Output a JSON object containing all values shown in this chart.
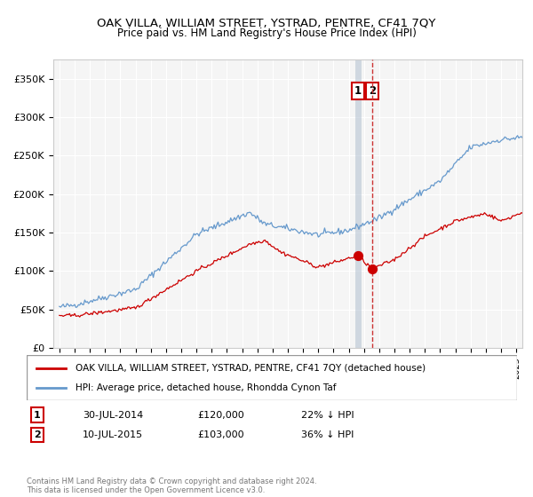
{
  "title": "OAK VILLA, WILLIAM STREET, YSTRAD, PENTRE, CF41 7QY",
  "subtitle": "Price paid vs. HM Land Registry's House Price Index (HPI)",
  "ylabel_ticks": [
    "£0",
    "£50K",
    "£100K",
    "£150K",
    "£200K",
    "£250K",
    "£300K",
    "£350K"
  ],
  "ylabel_values": [
    0,
    50000,
    100000,
    150000,
    200000,
    250000,
    300000,
    350000
  ],
  "ylim": [
    0,
    375000
  ],
  "xlim_start": 1994.6,
  "xlim_end": 2025.4,
  "legend_label_red": "OAK VILLA, WILLIAM STREET, YSTRAD, PENTRE, CF41 7QY (detached house)",
  "legend_label_blue": "HPI: Average price, detached house, Rhondda Cynon Taf",
  "transaction1_date": "30-JUL-2014",
  "transaction1_price": "£120,000",
  "transaction1_pct": "22% ↓ HPI",
  "transaction2_date": "10-JUL-2015",
  "transaction2_price": "£103,000",
  "transaction2_pct": "36% ↓ HPI",
  "footnote": "Contains HM Land Registry data © Crown copyright and database right 2024.\nThis data is licensed under the Open Government Licence v3.0.",
  "vline1_x": 2014.58,
  "vline2_x": 2015.53,
  "red_dot1_x": 2014.58,
  "red_dot1_y": 120000,
  "red_dot2_x": 2015.53,
  "red_dot2_y": 103000,
  "red_color": "#cc0000",
  "blue_color": "#6699cc",
  "vline1_color": "#aabbcc",
  "vline2_color": "#cc3333",
  "bg_color": "#f5f5f5"
}
